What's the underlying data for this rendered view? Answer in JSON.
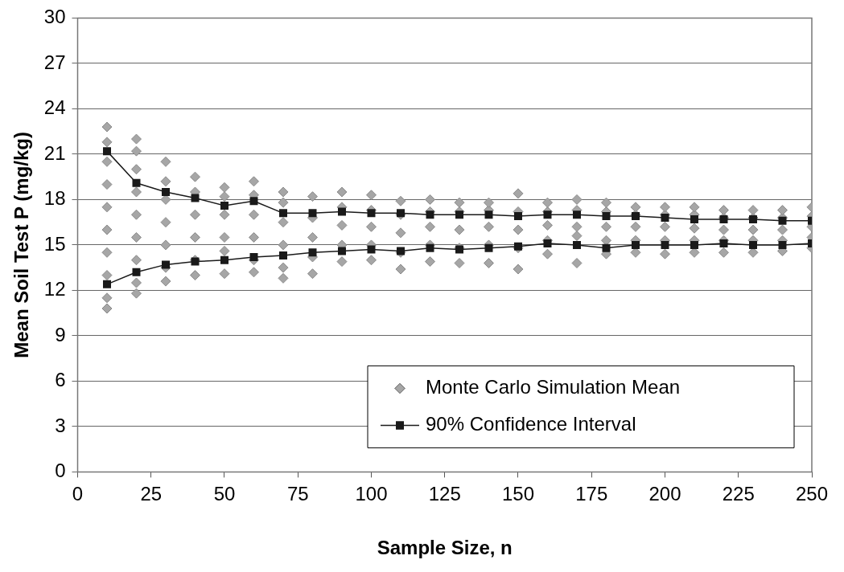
{
  "chart_data": {
    "type": "scatter",
    "xlabel": "Sample Size, n",
    "ylabel": "Mean Soil Test P (mg/kg)",
    "xlim": [
      0,
      250
    ],
    "xticks": [
      0,
      25,
      50,
      75,
      100,
      125,
      150,
      175,
      200,
      225,
      250
    ],
    "ylim": [
      0,
      30
    ],
    "yticks": [
      0,
      3,
      6,
      9,
      12,
      15,
      18,
      21,
      24,
      27,
      30
    ],
    "grid": "y",
    "legend": "bottom right",
    "series": [
      {
        "name": "Monte Carlo Simulation Mean",
        "marker": "diamond",
        "color": "#a6a6a6",
        "x": [
          10,
          10,
          10,
          10,
          10,
          10,
          10,
          10,
          10,
          10,
          20,
          20,
          20,
          20,
          20,
          20,
          20,
          20,
          20,
          30,
          30,
          30,
          30,
          30,
          30,
          30,
          40,
          40,
          40,
          40,
          40,
          40,
          50,
          50,
          50,
          50,
          50,
          50,
          60,
          60,
          60,
          60,
          60,
          60,
          70,
          70,
          70,
          70,
          70,
          70,
          80,
          80,
          80,
          80,
          80,
          90,
          90,
          90,
          90,
          90,
          100,
          100,
          100,
          100,
          100,
          110,
          110,
          110,
          110,
          110,
          120,
          120,
          120,
          120,
          120,
          130,
          130,
          130,
          130,
          130,
          140,
          140,
          140,
          140,
          140,
          150,
          150,
          150,
          150,
          150,
          160,
          160,
          160,
          160,
          160,
          170,
          170,
          170,
          170,
          170,
          180,
          180,
          180,
          180,
          180,
          190,
          190,
          190,
          190,
          190,
          200,
          200,
          200,
          200,
          200,
          210,
          210,
          210,
          210,
          210,
          220,
          220,
          220,
          220,
          220,
          230,
          230,
          230,
          230,
          230,
          240,
          240,
          240,
          240,
          240,
          250,
          250,
          250,
          250,
          250
        ],
        "values": [
          10.8,
          11.5,
          13,
          14.5,
          16,
          17.5,
          19,
          20.5,
          21.8,
          22.8,
          11.8,
          12.5,
          14,
          15.5,
          17,
          18.5,
          20,
          21.2,
          22.0,
          12.6,
          13.5,
          15,
          16.5,
          18,
          19.2,
          20.5,
          13.0,
          14,
          15.5,
          17,
          18.5,
          19.5,
          13.1,
          14.6,
          15.5,
          17,
          18.2,
          18.8,
          13.2,
          14,
          15.5,
          17,
          18.3,
          19.2,
          12.8,
          13.5,
          15,
          16.5,
          17.8,
          18.5,
          13.1,
          14.2,
          15.5,
          16.8,
          18.2,
          13.9,
          15,
          16.3,
          17.5,
          18.5,
          14.0,
          15,
          16.2,
          17.3,
          18.3,
          13.4,
          14.5,
          15.8,
          17,
          17.9,
          13.9,
          15,
          16.2,
          17.2,
          18.0,
          13.8,
          14.8,
          16,
          17.2,
          17.8,
          13.8,
          15,
          16.2,
          17.3,
          17.8,
          13.4,
          14.8,
          16,
          17.2,
          18.4,
          14.4,
          15.3,
          16.3,
          17.2,
          17.8,
          13.8,
          15.6,
          16.2,
          17.3,
          18.0,
          14.4,
          15.3,
          16.2,
          17.2,
          17.8,
          14.5,
          15.3,
          16.2,
          17,
          17.5,
          14.4,
          15.3,
          16.2,
          17,
          17.5,
          14.5,
          15.3,
          16.1,
          17,
          17.5,
          14.5,
          15.3,
          16,
          16.8,
          17.3,
          14.5,
          15.3,
          16,
          16.8,
          17.3,
          14.6,
          15.3,
          16,
          16.8,
          17.3,
          14.8,
          15.5,
          16.2,
          16.9,
          17.5
        ]
      },
      {
        "name": "90% Confidence Interval",
        "type": "line",
        "marker": "square",
        "color": "#1a1a1a",
        "x": [
          10,
          20,
          30,
          40,
          50,
          60,
          70,
          80,
          90,
          100,
          110,
          120,
          130,
          140,
          150,
          160,
          170,
          180,
          190,
          200,
          210,
          220,
          230,
          240,
          250
        ],
        "values": [
          21.2,
          19.1,
          18.5,
          18.1,
          17.6,
          17.9,
          17.1,
          17.1,
          17.2,
          17.1,
          17.1,
          17.0,
          17.0,
          17.0,
          16.9,
          17.0,
          17.0,
          16.9,
          16.9,
          16.8,
          16.7,
          16.7,
          16.7,
          16.6,
          16.6
        ]
      },
      {
        "type": "line",
        "marker": "square",
        "color": "#1a1a1a",
        "x": [
          10,
          20,
          30,
          40,
          50,
          60,
          70,
          80,
          90,
          100,
          110,
          120,
          130,
          140,
          150,
          160,
          170,
          180,
          190,
          200,
          210,
          220,
          230,
          240,
          250
        ],
        "values": [
          12.4,
          13.2,
          13.7,
          13.9,
          14.0,
          14.2,
          14.3,
          14.5,
          14.6,
          14.7,
          14.6,
          14.8,
          14.7,
          14.8,
          14.9,
          15.1,
          15.0,
          14.8,
          15.0,
          15.0,
          15.0,
          15.1,
          15.0,
          15.0,
          15.1
        ]
      }
    ]
  }
}
